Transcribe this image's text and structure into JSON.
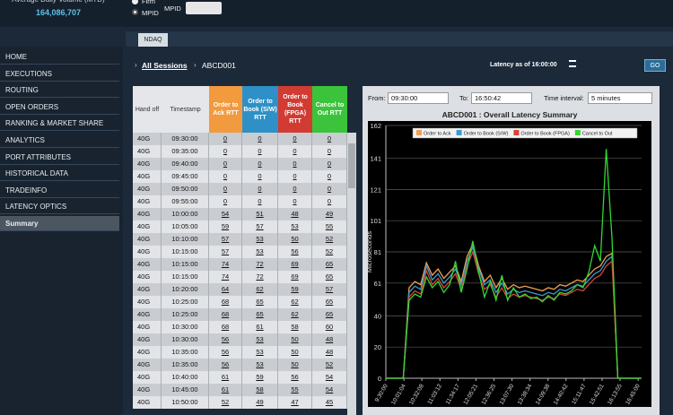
{
  "header": {
    "volume_label": "Average Daily Volume (MTD)",
    "volume_value": "164,086,707",
    "radio_firm": "Firm",
    "radio_mpid": "MPID",
    "mpid_label": "MPID"
  },
  "tab": "NDAQ",
  "menu": [
    "HOME",
    "EXECUTIONS",
    "ROUTING",
    "OPEN ORDERS",
    "RANKING & MARKET SHARE",
    "ANALYTICS",
    "PORT ATTRIBUTES",
    "HISTORICAL DATA",
    "TRADEINFO",
    "LATENCY OPTICS",
    "Summary"
  ],
  "breadcrumb": {
    "link": "All Sessions",
    "session": "ABCD001",
    "latency_as_of": "Latency as of 16:00:00",
    "go": "GO"
  },
  "table": {
    "columns": [
      "Hand off",
      "Timestamp",
      "Order to Ack RTT",
      "Order to Book (S/W) RTT",
      "Order to Book (FPGA) RTT",
      "Cancel to Out RTT"
    ],
    "rows": [
      [
        "40G",
        "09:30:00",
        0,
        0,
        0,
        0
      ],
      [
        "40G",
        "09:35:00",
        0,
        0,
        0,
        0
      ],
      [
        "40G",
        "09:40:00",
        0,
        0,
        0,
        0
      ],
      [
        "40G",
        "09:45:00",
        0,
        0,
        0,
        0
      ],
      [
        "40G",
        "09:50:00",
        0,
        0,
        0,
        0
      ],
      [
        "40G",
        "09:55:00",
        0,
        0,
        0,
        0
      ],
      [
        "40G",
        "10:00:00",
        54,
        51,
        48,
        49
      ],
      [
        "40G",
        "10:05:00",
        59,
        57,
        53,
        55
      ],
      [
        "40G",
        "10:10:00",
        57,
        53,
        50,
        52
      ],
      [
        "40G",
        "10:15:00",
        57,
        53,
        56,
        52
      ],
      [
        "40G",
        "10:15:00",
        74,
        72,
        69,
        65
      ],
      [
        "40G",
        "10:15:00",
        74,
        72,
        69,
        65
      ],
      [
        "40G",
        "10:20:00",
        64,
        62,
        59,
        57
      ],
      [
        "40G",
        "10:25:00",
        68,
        65,
        62,
        65
      ],
      [
        "40G",
        "10:25:00",
        68,
        65,
        62,
        65
      ],
      [
        "40G",
        "10:30:00",
        68,
        61,
        58,
        60
      ],
      [
        "40G",
        "10:30:00",
        56,
        53,
        50,
        48
      ],
      [
        "40G",
        "10:35:00",
        56,
        53,
        50,
        48
      ],
      [
        "40G",
        "10:35:00",
        56,
        53,
        50,
        52
      ],
      [
        "40G",
        "10:40:00",
        61,
        59,
        56,
        54
      ],
      [
        "40G",
        "10:45:00",
        61,
        58,
        55,
        54
      ],
      [
        "40G",
        "10:50:00",
        52,
        49,
        47,
        45
      ]
    ]
  },
  "filters": {
    "from_label": "From:",
    "from": "09:30:00",
    "to_label": "To:",
    "to": "16:50:42",
    "interval_label": "Time interval:",
    "interval": "5 minutes"
  },
  "chart_data": {
    "type": "line",
    "title": "ABCD001   : Overall Latency Summary",
    "ylabel": "Microseconds",
    "x": [
      0,
      10,
      20,
      30,
      40,
      50,
      60,
      70,
      80,
      90,
      100,
      110,
      120,
      130,
      140,
      150,
      160,
      170,
      180,
      190,
      200,
      210,
      220,
      230,
      240,
      250,
      260,
      270,
      280,
      290,
      300,
      310,
      320,
      330,
      340,
      350,
      360,
      370,
      380,
      390,
      400,
      410,
      420,
      430,
      440
    ],
    "xlim": [
      0,
      441
    ],
    "xticks": [
      {
        "value": 0,
        "label": "9:30:00"
      },
      {
        "value": 31.067,
        "label": "10:01:04"
      },
      {
        "value": 62.133,
        "label": "10:32:08"
      },
      {
        "value": 93.2,
        "label": "11:03:12"
      },
      {
        "value": 124.283,
        "label": "11:34:17"
      },
      {
        "value": 155.35,
        "label": "12:05:21"
      },
      {
        "value": 186.417,
        "label": "12:36:25"
      },
      {
        "value": 217.5,
        "label": "13:07:30"
      },
      {
        "value": 248.567,
        "label": "13:38:34"
      },
      {
        "value": 279.633,
        "label": "14:09:38"
      },
      {
        "value": 310.7,
        "label": "14:40:42"
      },
      {
        "value": 341.783,
        "label": "15:11:47"
      },
      {
        "value": 372.85,
        "label": "15:42:51"
      },
      {
        "value": 403.917,
        "label": "16:13:55"
      },
      {
        "value": 435,
        "label": "16:45:00"
      }
    ],
    "ylim": [
      0,
      162
    ],
    "yticks": [
      0,
      20,
      40,
      61,
      81,
      101,
      121,
      141,
      162
    ],
    "grid": true,
    "legend": "top",
    "series": [
      {
        "name": "Order to Ack",
        "color": "#f0a050",
        "values": [
          0,
          0,
          0,
          0,
          58,
          62,
          60,
          74,
          66,
          70,
          64,
          68,
          72,
          62,
          78,
          86,
          72,
          62,
          66,
          58,
          64,
          57,
          60,
          58,
          59,
          58,
          57,
          56,
          58,
          57,
          60,
          59,
          61,
          63,
          62,
          66,
          70,
          72,
          78,
          80,
          0,
          0,
          0,
          0,
          0
        ]
      },
      {
        "name": "Order to Book (S/W)",
        "color": "#3a9bd0",
        "values": [
          0,
          0,
          0,
          0,
          55,
          59,
          57,
          72,
          63,
          67,
          61,
          65,
          70,
          60,
          75,
          84,
          70,
          60,
          63,
          55,
          61,
          54,
          57,
          55,
          56,
          55,
          54,
          53,
          55,
          54,
          57,
          56,
          58,
          60,
          59,
          63,
          67,
          69,
          75,
          78,
          0,
          0,
          0,
          0,
          0
        ]
      },
      {
        "name": "Order to Book (FPGA)",
        "color": "#d8433a",
        "values": [
          0,
          0,
          0,
          0,
          52,
          56,
          54,
          69,
          60,
          64,
          58,
          62,
          67,
          57,
          72,
          81,
          67,
          57,
          60,
          52,
          58,
          51,
          54,
          52,
          53,
          52,
          51,
          50,
          52,
          51,
          54,
          53,
          55,
          57,
          56,
          60,
          64,
          66,
          72,
          75,
          0,
          0,
          0,
          0,
          0
        ]
      },
      {
        "name": "Cancel to Out",
        "color": "#33d633",
        "values": [
          0,
          0,
          0,
          0,
          50,
          54,
          52,
          65,
          58,
          62,
          55,
          60,
          75,
          55,
          70,
          88,
          68,
          52,
          62,
          50,
          66,
          50,
          58,
          52,
          54,
          51,
          52,
          49,
          53,
          50,
          55,
          54,
          56,
          60,
          58,
          68,
          85,
          75,
          147,
          90,
          0,
          0,
          0,
          0,
          0
        ]
      }
    ]
  }
}
